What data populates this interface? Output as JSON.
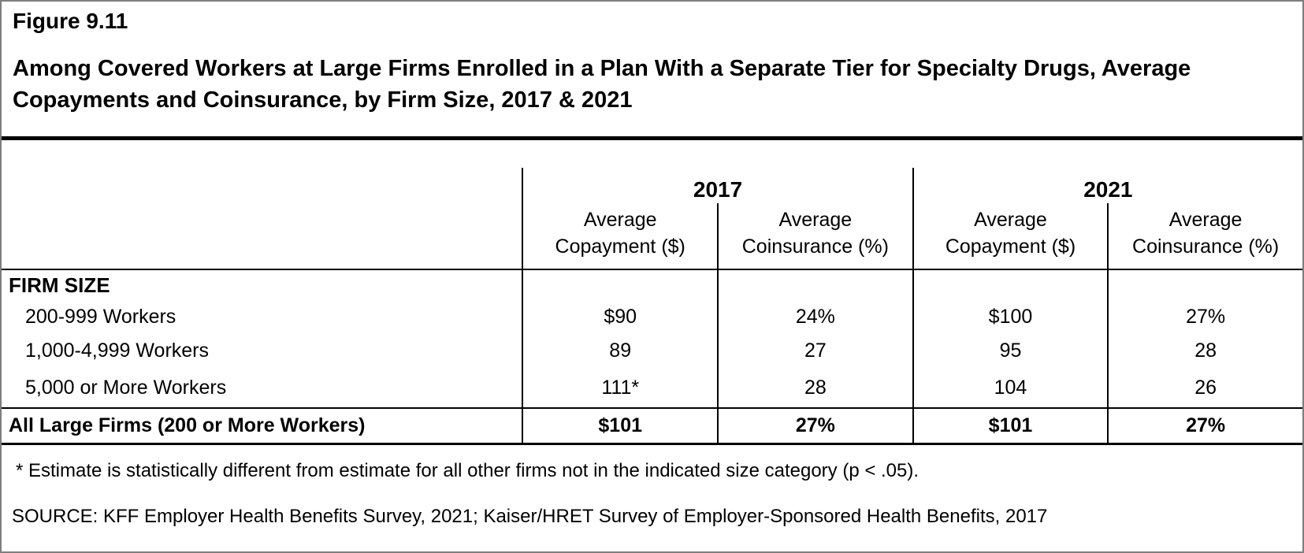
{
  "figure": {
    "label": "Figure 9.11",
    "title": "Among Covered Workers at Large Firms Enrolled in a Plan With a Separate Tier for Specialty Drugs, Average Copayments and Coinsurance, by Firm Size, 2017 & 2021"
  },
  "table": {
    "year_groups": [
      {
        "label": "2017"
      },
      {
        "label": "2021"
      }
    ],
    "columns": [
      {
        "line1": "Average",
        "line2": "Copayment ($)"
      },
      {
        "line1": "Average",
        "line2": "Coinsurance (%)"
      },
      {
        "line1": "Average",
        "line2": "Copayment ($)"
      },
      {
        "line1": "Average",
        "line2": "Coinsurance (%)"
      }
    ],
    "section_header": "FIRM SIZE",
    "rows": [
      {
        "label": "200-999 Workers",
        "values": [
          "$90",
          "24%",
          "$100",
          "27%"
        ]
      },
      {
        "label": "1,000-4,999 Workers",
        "values": [
          "89",
          "27",
          "95",
          "28"
        ]
      },
      {
        "label": "5,000 or More Workers",
        "values": [
          "111*",
          "28",
          "104",
          "26"
        ]
      }
    ],
    "total_row": {
      "label": "All Large Firms (200 or More Workers)",
      "values": [
        "$101",
        "27%",
        "$101",
        "27%"
      ]
    }
  },
  "footnote": "* Estimate is statistically different from estimate for all other firms not in the indicated size category (p < .05).",
  "source": "SOURCE: KFF Employer Health Benefits Survey, 2021; Kaiser/HRET Survey of Employer-Sponsored Health Benefits, 2017",
  "colors": {
    "text": "#000000",
    "grid_lines": "#000000",
    "outer_border": "#7e7e7e",
    "background": "#ffffff"
  },
  "chart_data": {
    "type": "table",
    "title": "Among Covered Workers at Large Firms Enrolled in a Plan With a Separate Tier for Specialty Drugs, Average Copayments and Coinsurance, by Firm Size, 2017 & 2021",
    "row_group_header": "FIRM SIZE",
    "categories": [
      "200-999 Workers",
      "1,000-4,999 Workers",
      "5,000 or More Workers",
      "All Large Firms (200 or More Workers)"
    ],
    "series": [
      {
        "name": "2017 Average Copayment ($)",
        "values": [
          90,
          89,
          111,
          101
        ]
      },
      {
        "name": "2017 Average Coinsurance (%)",
        "values": [
          24,
          27,
          28,
          27
        ]
      },
      {
        "name": "2021 Average Copayment ($)",
        "values": [
          100,
          95,
          104,
          101
        ]
      },
      {
        "name": "2021 Average Coinsurance (%)",
        "values": [
          27,
          28,
          26,
          27
        ]
      }
    ],
    "annotations": [
      "111* is statistically different from estimate for all other firms not in the indicated size category (p < .05)"
    ],
    "legend_position": "none",
    "grid": "table-lines"
  }
}
